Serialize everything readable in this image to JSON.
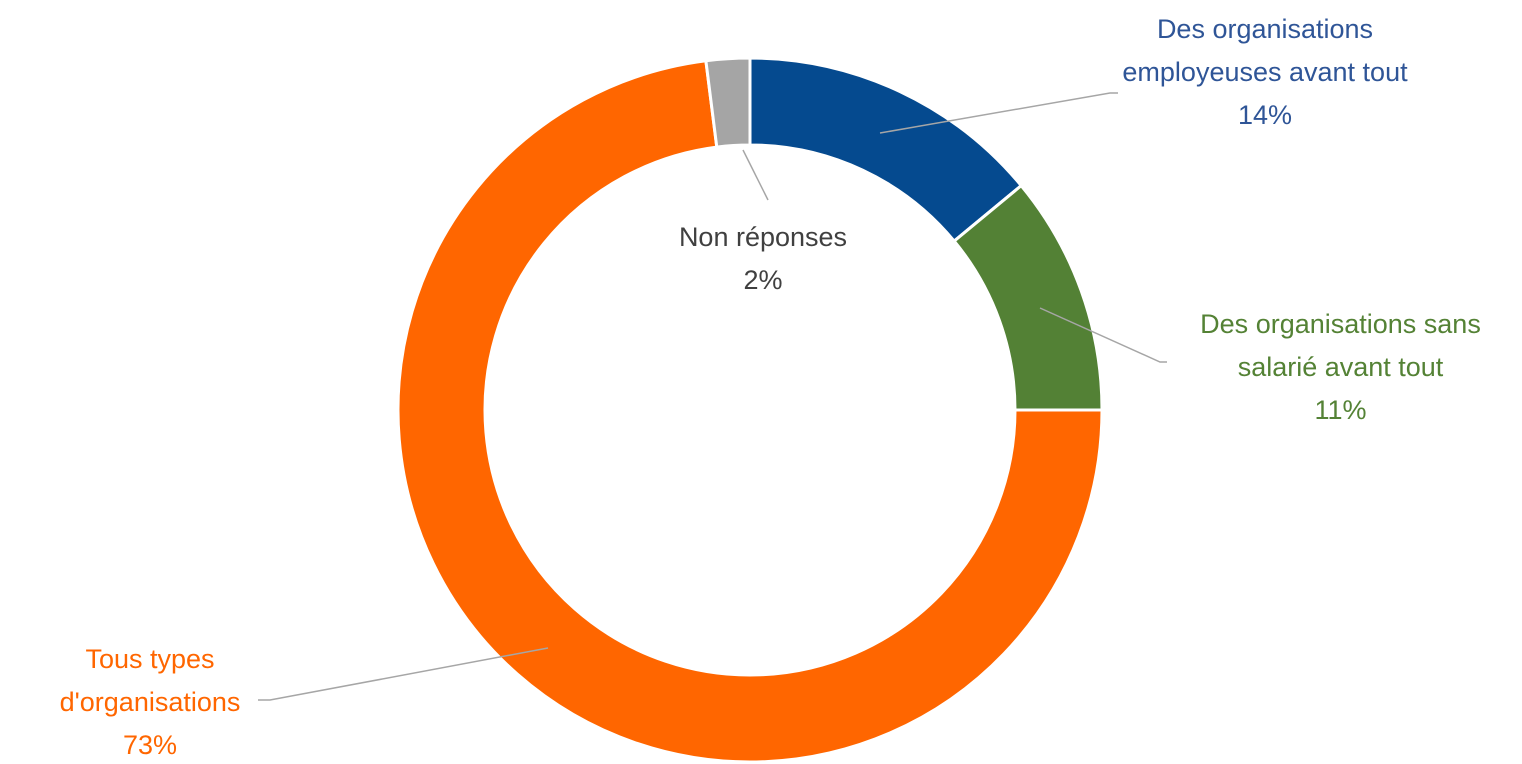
{
  "chart_data": {
    "type": "donut",
    "categories": [
      "Des organisations employeuses avant tout",
      "Des organisations sans salarié avant tout",
      "Tous types d'organisations",
      "Non réponses"
    ],
    "values": [
      14,
      11,
      73,
      2
    ],
    "value_labels": [
      "14%",
      "11%",
      "73%",
      "2%"
    ],
    "colors": [
      "#054a8f",
      "#538135",
      "#ff6600",
      "#a5a5a5"
    ],
    "label_colors": [
      "#2f5597",
      "#548235",
      "#ff6600",
      "#404040"
    ]
  }
}
